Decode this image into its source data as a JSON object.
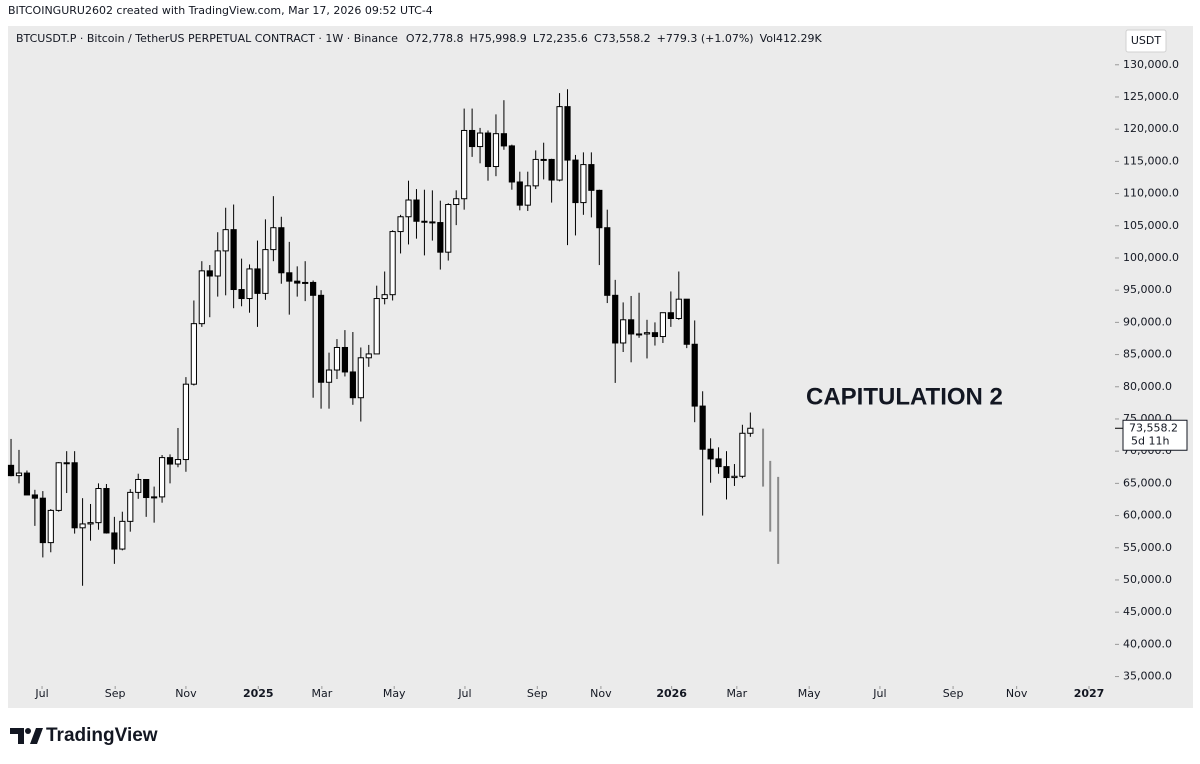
{
  "chart_data": {
    "type": "candlestick",
    "subtitle": "BITCOINGURU2602 created with TradingView.com, Mar 17, 2026 09:52 UTC-4",
    "title": "BTCUSDT.P · Bitcoin / TetherUS PERPETUAL CONTRACT · 1W · Binance",
    "ohlc_summary": [
      "O72,778.8",
      "H75,998.9",
      "L72,235.6",
      "C73,558.2",
      "+779.3 (+1.07%)",
      "Vol412.29K"
    ],
    "currency": "USDT",
    "annotation": "CAPITULATION 2",
    "last_value_label": "73,558.2",
    "countdown": "5d 11h",
    "up_color": "#ffffff",
    "down_color": "#000000",
    "open": [
      67800,
      66200,
      66600,
      63200,
      62700,
      55800,
      60800,
      68200,
      68200,
      58100,
      58700,
      58900,
      64200,
      57300,
      54800,
      59100,
      63600,
      65600,
      62800,
      62900,
      69000,
      68000,
      68700,
      80400,
      89800,
      98000,
      97200,
      101100,
      104400,
      95100,
      93700,
      98300,
      94500,
      101300,
      104700,
      97700,
      96400,
      96100,
      96200,
      94200,
      80700,
      82600,
      86100,
      82300,
      78300,
      84500,
      85100,
      93700,
      94300,
      104100,
      106400,
      109000,
      105700,
      105600,
      105500,
      100900,
      108300,
      109200,
      119800,
      117300,
      119400,
      114200,
      119300,
      117400,
      111800,
      108200,
      111200,
      115300,
      115300,
      112100,
      123500,
      115200,
      108600,
      114500,
      110500,
      104700,
      94200,
      86800,
      90400,
      88200,
      88200,
      88400,
      87800,
      91500,
      90600,
      93600,
      86600,
      77000,
      70300,
      68800,
      67600,
      65900,
      66100,
      72778.8
    ],
    "high": [
      71900,
      70200,
      67000,
      64000,
      63800,
      61000,
      68300,
      70000,
      70000,
      62700,
      61800,
      65000,
      64900,
      59800,
      60600,
      64100,
      66500,
      65600,
      64500,
      69400,
      69500,
      73600,
      81500,
      93400,
      99500,
      98900,
      104000,
      107800,
      108300,
      99900,
      99000,
      102700,
      106000,
      109600,
      106400,
      102500,
      98700,
      99500,
      96500,
      95000,
      85300,
      87400,
      88800,
      88500,
      86100,
      86500,
      95700,
      97900,
      104300,
      106700,
      112000,
      110700,
      110600,
      110500,
      108900,
      108500,
      110500,
      123200,
      123200,
      120200,
      119800,
      122300,
      124500,
      117600,
      113400,
      113400,
      116700,
      117900,
      115400,
      125600,
      126200,
      116000,
      116400,
      116400,
      110600,
      107500,
      96600,
      93100,
      94100,
      94600,
      90400,
      90000,
      91200,
      94800,
      97900,
      93600,
      90300,
      79300,
      72000,
      70600,
      70000,
      68000,
      74100,
      75998.9
    ],
    "low": [
      66100,
      65000,
      63400,
      58400,
      53500,
      54300,
      60600,
      63500,
      57200,
      49100,
      56100,
      57800,
      57200,
      52500,
      54600,
      57500,
      62600,
      59800,
      58900,
      62000,
      65000,
      67500,
      66800,
      80200,
      89300,
      90800,
      94000,
      94200,
      92200,
      92500,
      91500,
      89300,
      93500,
      99500,
      96000,
      91200,
      94000,
      93300,
      78300,
      76600,
      76600,
      81200,
      81600,
      77200,
      74600,
      83100,
      85100,
      92800,
      93400,
      100700,
      102100,
      103000,
      100400,
      102700,
      98200,
      99600,
      105100,
      107500,
      115700,
      114700,
      112000,
      112700,
      116800,
      110600,
      107400,
      107300,
      110700,
      112200,
      108600,
      111900,
      102000,
      103500,
      106700,
      106300,
      98900,
      93000,
      80600,
      85400,
      83800,
      87600,
      84400,
      86400,
      86800,
      89300,
      90400,
      86000,
      74500,
      60000,
      65100,
      66500,
      62500,
      64600,
      65800,
      72235.6
    ],
    "close": [
      66200,
      66600,
      63200,
      62700,
      55800,
      60800,
      68200,
      68200,
      58100,
      58700,
      58900,
      64200,
      57300,
      54800,
      59100,
      63600,
      65600,
      62800,
      62900,
      69000,
      68000,
      68700,
      80400,
      89800,
      98000,
      97200,
      101100,
      104400,
      95100,
      93700,
      98300,
      94500,
      101300,
      104700,
      97700,
      96400,
      96100,
      96200,
      94200,
      80700,
      82600,
      86100,
      82300,
      78300,
      84500,
      85100,
      93700,
      94300,
      104100,
      106400,
      109000,
      105700,
      105600,
      105500,
      100900,
      108300,
      109200,
      119800,
      117300,
      119400,
      114200,
      119300,
      117400,
      111800,
      108200,
      111200,
      115300,
      115300,
      112100,
      123500,
      115200,
      108600,
      114500,
      110500,
      104700,
      94200,
      86800,
      90400,
      88200,
      88200,
      88400,
      87800,
      91500,
      90600,
      93600,
      86600,
      77000,
      70300,
      68800,
      67600,
      65900,
      66100,
      72778.8,
      73558.2
    ],
    "projections": {
      "color": "#8a8a8a",
      "x": [
        94.6,
        95.5,
        96.5
      ],
      "high": [
        73500,
        68500,
        66000
      ],
      "low": [
        64500,
        57500,
        52500
      ]
    },
    "xlim": [
      -0.13,
      138.87
    ],
    "xticks": [
      {
        "value": 3.9,
        "label": "Jul"
      },
      {
        "value": 13.1,
        "label": "Sep"
      },
      {
        "value": 22.0,
        "label": "Nov"
      },
      {
        "value": 31.1,
        "label": "2025"
      },
      {
        "value": 39.1,
        "label": "Mar"
      },
      {
        "value": 48.2,
        "label": "May"
      },
      {
        "value": 57.1,
        "label": "Jul"
      },
      {
        "value": 66.2,
        "label": "Sep"
      },
      {
        "value": 74.2,
        "label": "Nov"
      },
      {
        "value": 83.1,
        "label": "2026"
      },
      {
        "value": 91.3,
        "label": "Mar"
      },
      {
        "value": 100.4,
        "label": "May"
      },
      {
        "value": 109.3,
        "label": "Jul"
      },
      {
        "value": 118.5,
        "label": "Sep"
      },
      {
        "value": 126.5,
        "label": "Nov"
      },
      {
        "value": 135.6,
        "label": "2027"
      }
    ],
    "ylim": [
      34000,
      135400
    ],
    "yticks": [
      {
        "value": 35000,
        "label": "35,000.0"
      },
      {
        "value": 40000,
        "label": "40,000.0"
      },
      {
        "value": 45000,
        "label": "45,000.0"
      },
      {
        "value": 50000,
        "label": "50,000.0"
      },
      {
        "value": 55000,
        "label": "55,000.0"
      },
      {
        "value": 60000,
        "label": "60,000.0"
      },
      {
        "value": 65000,
        "label": "65,000.0"
      },
      {
        "value": 70000,
        "label": "70,000.0"
      },
      {
        "value": 75000,
        "label": "75,000.0"
      },
      {
        "value": 80000,
        "label": "80,000.0"
      },
      {
        "value": 85000,
        "label": "85,000.0"
      },
      {
        "value": 90000,
        "label": "90,000.0"
      },
      {
        "value": 95000,
        "label": "95,000.0"
      },
      {
        "value": 100000,
        "label": "100,000.0"
      },
      {
        "value": 105000,
        "label": "105,000.0"
      },
      {
        "value": 110000,
        "label": "110,000.0"
      },
      {
        "value": 115000,
        "label": "115,000.0"
      },
      {
        "value": 120000,
        "label": "120,000.0"
      },
      {
        "value": 125000,
        "label": "125,000.0"
      },
      {
        "value": 130000,
        "label": "130,000.0"
      }
    ]
  },
  "footer": {
    "brand": "TradingView"
  }
}
